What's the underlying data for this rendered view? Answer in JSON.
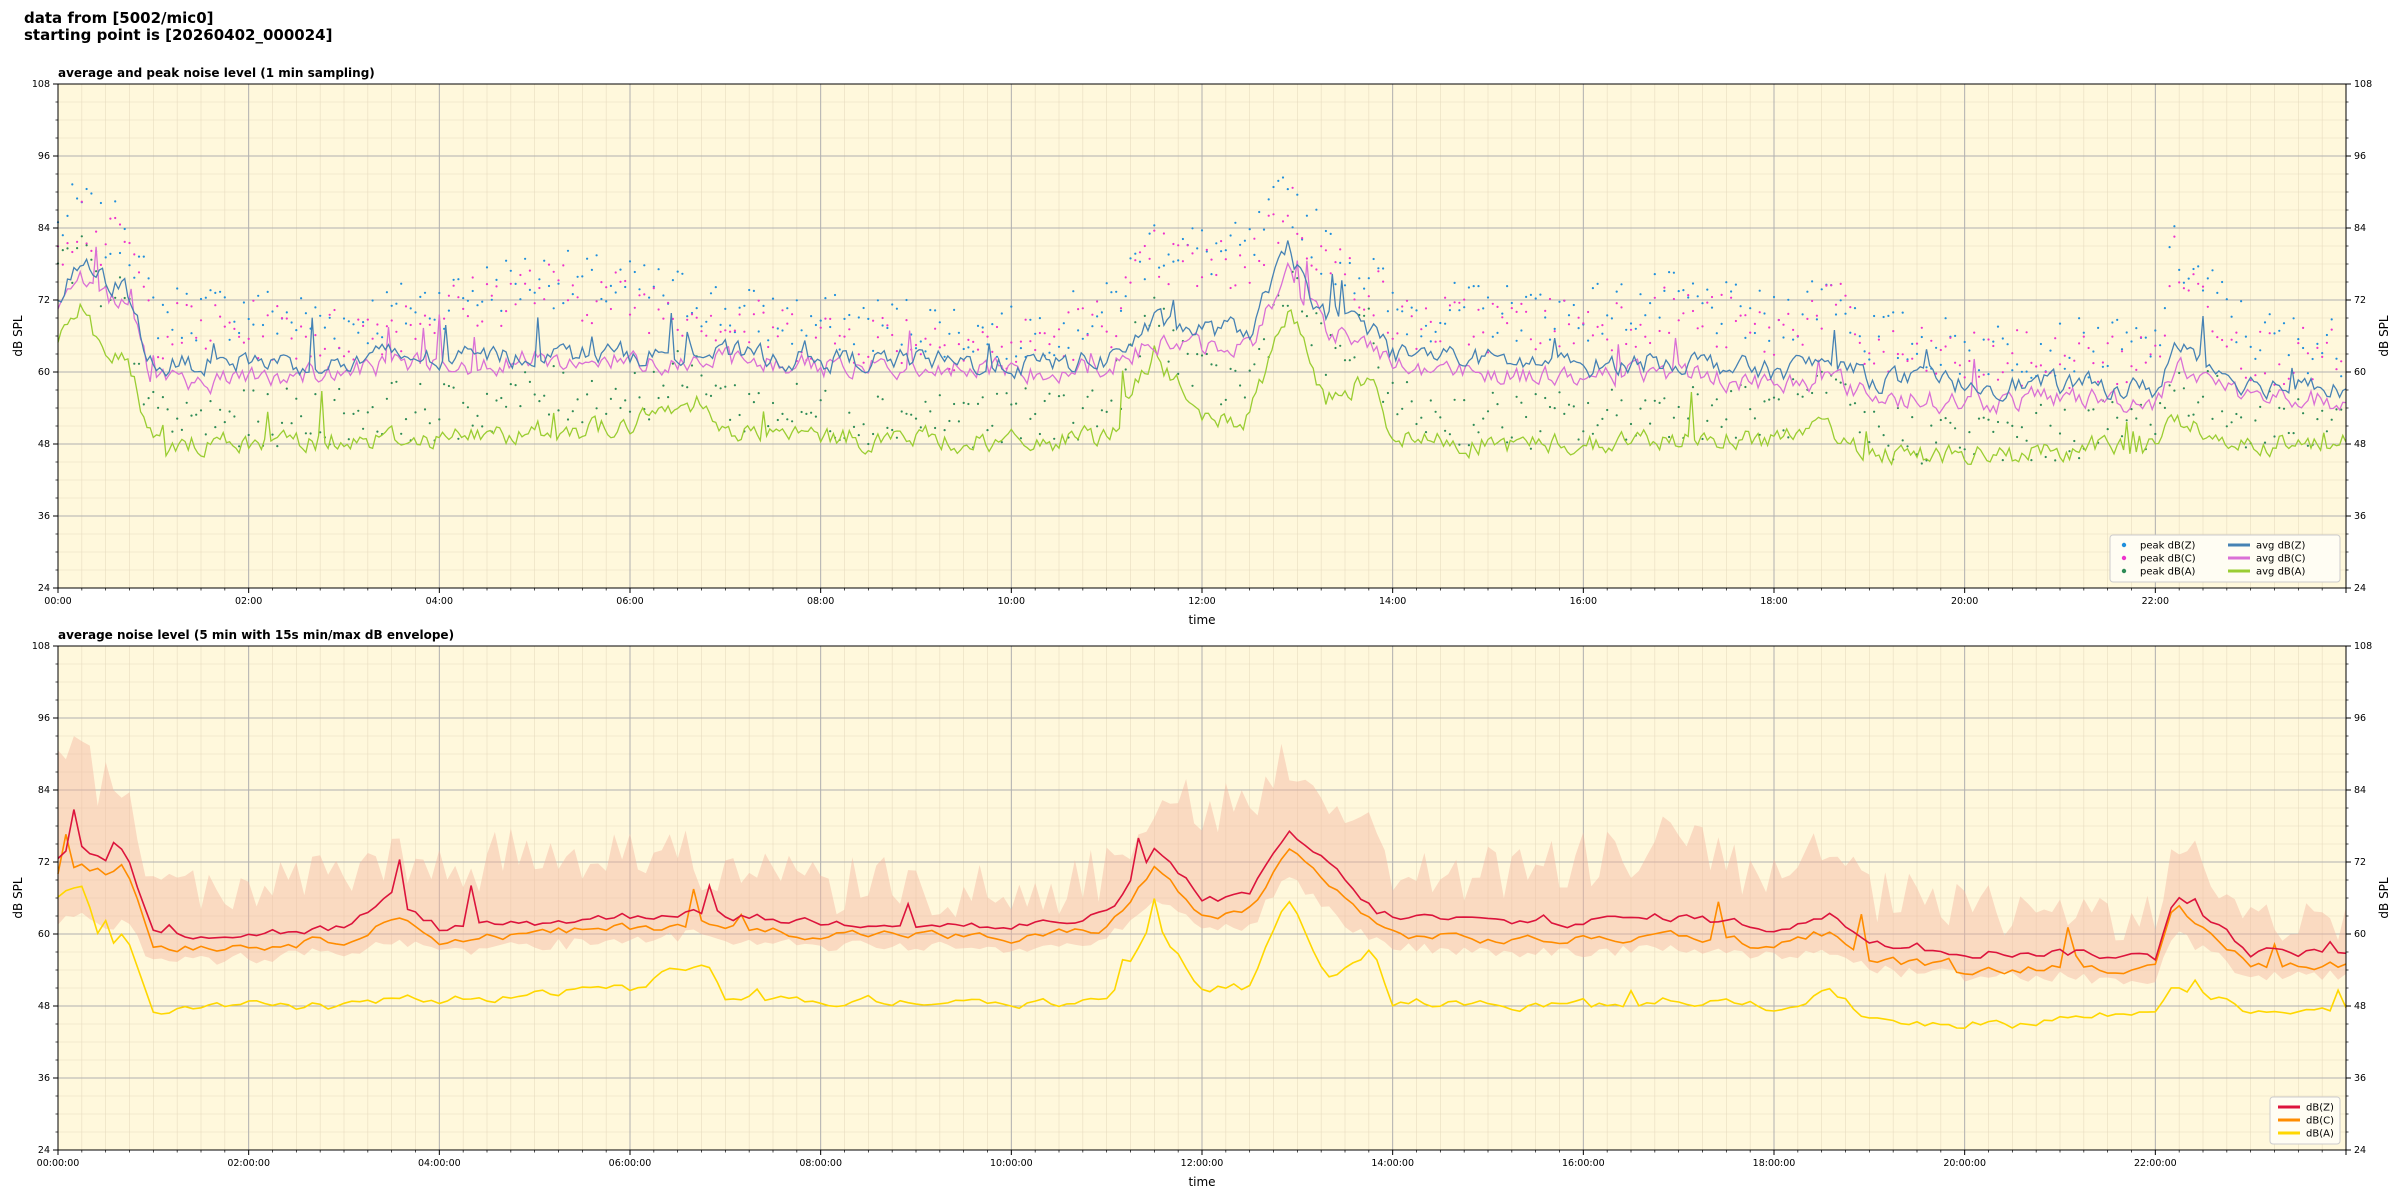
{
  "header": {
    "line1": "data from [5002/mic0]",
    "line2": "starting point is [20260402_000024]"
  },
  "colors": {
    "plot_bg": "#fff8dc",
    "peak_z": "#1f8fdc",
    "peak_c": "#ee33cc",
    "peak_a": "#2e8b57",
    "avg_z": "#4682b4",
    "avg_c": "#da70d6",
    "avg_a": "#9acd32",
    "db_z": "#dc143c",
    "db_c": "#ff8c00",
    "db_a": "#ffd700",
    "envelope": "#f5b5a0"
  },
  "chart_data": [
    {
      "type": "line",
      "title": "average and peak noise level (1 min sampling)",
      "xlabel": "time",
      "ylabel": "dB SPL",
      "ylim": [
        24,
        108
      ],
      "xlim_hours": [
        0,
        24
      ],
      "yticks": [
        "24",
        "36",
        "48",
        "60",
        "72",
        "84",
        "96",
        "108"
      ],
      "xticks": [
        "00:00",
        "02:00",
        "04:00",
        "06:00",
        "08:00",
        "10:00",
        "12:00",
        "14:00",
        "16:00",
        "18:00",
        "20:00",
        "22:00"
      ],
      "grid": true,
      "legend_position": "bottom-right",
      "hours": [
        0,
        0.25,
        0.5,
        0.7,
        1,
        2,
        3,
        3.5,
        4,
        5,
        6,
        6.8,
        7,
        8,
        9,
        10,
        11,
        11.5,
        12,
        12.5,
        12.9,
        13.3,
        13.8,
        14,
        15,
        16,
        17,
        18,
        18.6,
        19,
        20,
        20.5,
        21,
        22,
        22.2,
        23,
        24
      ],
      "series": [
        {
          "name": "avg dB(Z)",
          "kind": "line",
          "values": [
            72,
            78,
            75,
            74,
            61,
            62,
            61,
            63,
            62,
            63,
            63,
            63,
            63,
            62,
            62,
            61,
            62,
            68,
            67,
            67,
            80,
            69,
            67,
            63,
            62,
            61,
            62,
            60,
            62,
            59,
            58,
            58,
            58,
            57,
            64,
            58,
            57
          ]
        },
        {
          "name": "avg dB(C)",
          "kind": "line",
          "values": [
            70,
            76,
            72,
            72,
            58,
            59,
            60,
            61,
            61,
            62,
            62,
            62,
            62,
            61,
            61,
            60,
            61,
            65,
            64,
            64,
            77,
            67,
            65,
            61,
            60,
            59,
            60,
            58,
            59,
            56,
            55,
            55,
            56,
            55,
            61,
            56,
            55
          ]
        },
        {
          "name": "avg dB(A)",
          "kind": "line",
          "values": [
            66,
            72,
            62,
            63,
            48,
            48,
            49,
            49,
            49,
            50,
            51,
            56,
            50,
            49,
            49,
            48,
            49,
            63,
            52,
            52,
            70,
            55,
            60,
            49,
            48,
            48,
            49,
            49,
            50,
            47,
            46,
            46,
            47,
            48,
            52,
            48,
            49
          ]
        },
        {
          "name": "peak dB(Z)",
          "kind": "points",
          "values": [
            84,
            88,
            82,
            85,
            70,
            70,
            68,
            70,
            72,
            76,
            74,
            72,
            70,
            68,
            68,
            66,
            70,
            82,
            80,
            80,
            90,
            80,
            76,
            70,
            70,
            70,
            72,
            68,
            74,
            66,
            64,
            64,
            64,
            64,
            80,
            66,
            64
          ]
        },
        {
          "name": "peak dB(C)",
          "kind": "points",
          "values": [
            82,
            86,
            80,
            83,
            67,
            67,
            66,
            68,
            70,
            74,
            72,
            70,
            68,
            66,
            66,
            64,
            68,
            79,
            77,
            78,
            88,
            78,
            74,
            68,
            68,
            68,
            70,
            66,
            72,
            63,
            62,
            62,
            62,
            62,
            78,
            63,
            62
          ]
        },
        {
          "name": "peak dB(A)",
          "kind": "points",
          "values": [
            76,
            80,
            70,
            72,
            52,
            52,
            53,
            54,
            53,
            56,
            56,
            60,
            55,
            53,
            53,
            52,
            54,
            70,
            58,
            58,
            76,
            62,
            66,
            54,
            52,
            52,
            54,
            53,
            56,
            50,
            49,
            49,
            50,
            52,
            58,
            52,
            52
          ]
        }
      ]
    },
    {
      "type": "line",
      "title": "average noise level (5 min with 15s min/max dB envelope)",
      "xlabel": "time",
      "ylabel": "dB SPL",
      "ylim": [
        24,
        108
      ],
      "xlim_hours": [
        0,
        24
      ],
      "yticks": [
        "24",
        "36",
        "48",
        "60",
        "72",
        "84",
        "96",
        "108"
      ],
      "xticks": [
        "00:00:00",
        "02:00:00",
        "04:00:00",
        "06:00:00",
        "08:00:00",
        "10:00:00",
        "12:00:00",
        "14:00:00",
        "16:00:00",
        "18:00:00",
        "20:00:00",
        "22:00:00"
      ],
      "grid": true,
      "legend_position": "bottom-right",
      "hours": [
        0,
        0.25,
        0.5,
        0.7,
        1,
        2,
        3,
        3.5,
        4,
        5,
        6,
        6.8,
        7,
        8,
        9,
        10,
        11,
        11.5,
        12,
        12.5,
        12.9,
        13.3,
        13.8,
        14,
        15,
        16,
        17,
        18,
        18.6,
        19,
        20,
        20.5,
        21,
        22,
        22.2,
        23,
        24
      ],
      "series": [
        {
          "name": "dB(Z)",
          "kind": "line",
          "values": [
            73,
            75,
            72,
            74,
            60,
            60,
            61,
            66,
            61,
            62,
            63,
            64,
            63,
            62,
            62,
            61,
            63,
            74,
            66,
            66,
            77,
            72,
            64,
            63,
            62,
            62,
            63,
            61,
            63,
            59,
            57,
            57,
            57,
            56,
            67,
            57,
            57
          ]
        },
        {
          "name": "dB(C)",
          "kind": "line",
          "values": [
            70,
            72,
            70,
            72,
            58,
            58,
            59,
            63,
            59,
            60,
            61,
            62,
            61,
            60,
            60,
            59,
            61,
            71,
            63,
            63,
            74,
            69,
            62,
            60,
            59,
            59,
            60,
            58,
            60,
            56,
            54,
            54,
            55,
            54,
            64,
            55,
            55
          ]
        },
        {
          "name": "dB(A)",
          "kind": "line",
          "values": [
            66,
            68,
            56,
            60,
            47,
            48,
            48,
            49,
            49,
            50,
            51,
            56,
            50,
            49,
            49,
            48,
            49,
            62,
            51,
            51,
            66,
            53,
            58,
            49,
            48,
            48,
            49,
            48,
            50,
            46,
            45,
            45,
            46,
            47,
            52,
            47,
            48
          ]
        },
        {
          "name": "max envelope",
          "kind": "envelope-upper",
          "values": [
            88,
            90,
            84,
            86,
            68,
            68,
            70,
            72,
            70,
            74,
            74,
            72,
            70,
            68,
            68,
            66,
            70,
            84,
            80,
            82,
            90,
            84,
            76,
            70,
            70,
            72,
            76,
            68,
            74,
            66,
            64,
            64,
            64,
            62,
            74,
            64,
            62
          ]
        },
        {
          "name": "min envelope",
          "kind": "envelope-lower",
          "values": [
            62,
            64,
            60,
            62,
            55,
            56,
            57,
            59,
            57,
            58,
            59,
            60,
            59,
            58,
            58,
            57,
            59,
            66,
            61,
            61,
            70,
            64,
            59,
            58,
            57,
            57,
            58,
            56,
            57,
            54,
            53,
            53,
            53,
            52,
            60,
            53,
            53
          ]
        }
      ]
    }
  ]
}
